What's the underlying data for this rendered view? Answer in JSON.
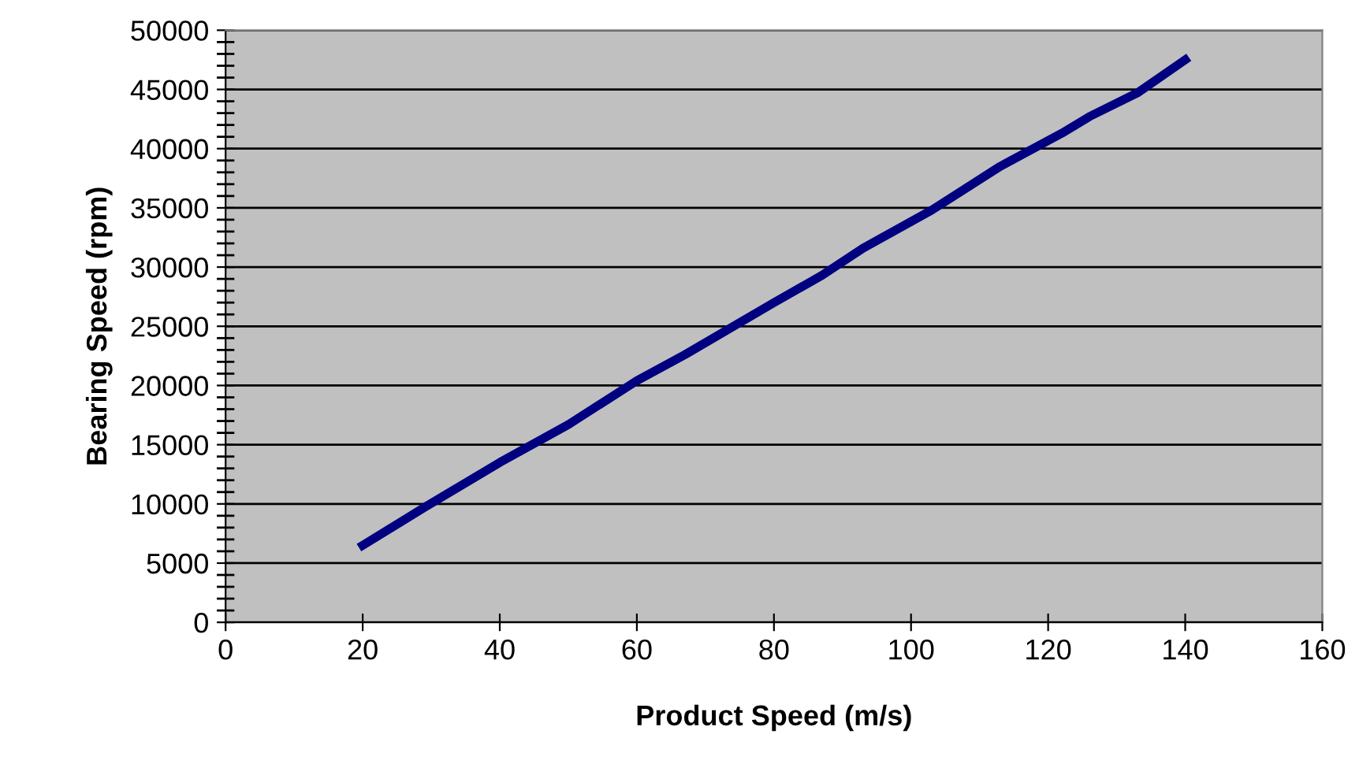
{
  "chart_data": {
    "type": "line",
    "xlabel": "Product Speed (m/s)",
    "ylabel": "Bearing Speed (rpm)",
    "x": [
      20,
      29,
      40,
      50,
      60,
      67,
      80,
      87,
      93,
      103,
      113,
      122,
      126,
      133,
      140
    ],
    "series": [
      {
        "color": "#000080",
        "values": [
          6500,
          9700,
          13500,
          16700,
          20400,
          22600,
          27000,
          29300,
          31600,
          34800,
          38500,
          41300,
          42700,
          44700,
          47500
        ]
      }
    ],
    "xlim": [
      0,
      160
    ],
    "xticks": [
      0,
      20,
      40,
      60,
      80,
      100,
      120,
      140,
      160
    ],
    "ylim": [
      0,
      50000
    ],
    "yticks": [
      0,
      5000,
      10000,
      15000,
      20000,
      25000,
      30000,
      35000,
      40000,
      45000,
      50000
    ],
    "grid": "y",
    "marker": "none",
    "line_style": "solid"
  }
}
